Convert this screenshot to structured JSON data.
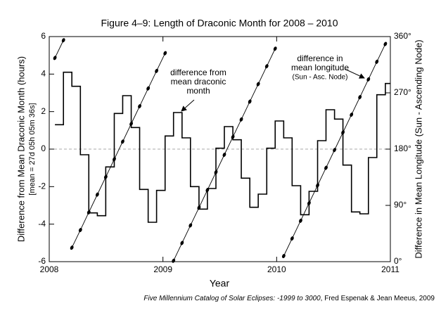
{
  "chart_data": {
    "type": "step",
    "title": "Figure 4–9: Length of Draconic Month for 2008 – 2010",
    "x_label": "Year",
    "y_label": "Difference from Mean Draconic Month (hours)",
    "y_sublabel": "[mean = 27d 05h 05m 36s]",
    "y2_label": "Difference in Mean Longitude (Sun - Ascending Node)",
    "xlim": [
      2008,
      2011
    ],
    "xticks": [
      2008,
      2009,
      2010,
      2011
    ],
    "ylim": [
      -6,
      6
    ],
    "yticks": [
      -6,
      -4,
      -2,
      0,
      2,
      4,
      6
    ],
    "y2lim": [
      0,
      360
    ],
    "y2ticks": [
      {
        "value": 0,
        "label": "0°"
      },
      {
        "value": 90,
        "label": "90°"
      },
      {
        "value": 180,
        "label": "180°"
      },
      {
        "value": 270,
        "label": "270°"
      },
      {
        "value": 360,
        "label": "360°"
      }
    ],
    "reference_line": 0,
    "x": [
      2008.05,
      2008.125,
      2008.199,
      2008.274,
      2008.348,
      2008.423,
      2008.497,
      2008.572,
      2008.646,
      2008.721,
      2008.795,
      2008.87,
      2008.944,
      2009.019,
      2009.093,
      2009.168,
      2009.242,
      2009.317,
      2009.391,
      2009.466,
      2009.54,
      2009.615,
      2009.689,
      2009.764,
      2009.838,
      2009.913,
      2009.987,
      2010.062,
      2010.136,
      2010.211,
      2010.285,
      2010.36,
      2010.434,
      2010.509,
      2010.583,
      2010.658,
      2010.732,
      2010.807,
      2010.881,
      2010.956
    ],
    "series": [
      {
        "color": "#000000",
        "values": [
          1.3,
          4.1,
          3.35,
          -0.3,
          -3.4,
          -3.55,
          -0.95,
          1.9,
          2.85,
          1.15,
          -2.15,
          -3.9,
          -2.2,
          0.7,
          1.95,
          0.6,
          -2.0,
          -3.2,
          -2.1,
          0.05,
          1.2,
          0.5,
          -1.55,
          -3.1,
          -2.4,
          0.05,
          1.5,
          0.6,
          -1.95,
          -3.5,
          -2.25,
          0.45,
          2.1,
          1.6,
          -0.85,
          -3.35,
          -3.45,
          -0.45,
          2.9,
          3.5
        ]
      },
      {
        "color": "#000000",
        "axis": "y2",
        "values": [
          325.9,
          354.1,
          22.4,
          50.6,
          78.9,
          107.3,
          135.4,
          163.9,
          192.0,
          220.5,
          248.6,
          277.1,
          305.1,
          333.4,
          1.5,
          29.9,
          58.0,
          86.4,
          114.5,
          143.0,
          171.0,
          199.5,
          227.5,
          256.0,
          284.0,
          312.5,
          340.6,
          9.0,
          37.1,
          65.5,
          93.6,
          122.0,
          150.1,
          178.6,
          206.6,
          235.1,
          263.1,
          291.6,
          319.7,
          348.1
        ]
      }
    ],
    "annotations": [
      {
        "text": [
          "difference from",
          "mean draconic",
          "month"
        ]
      },
      {
        "text": [
          "difference in",
          "mean longitude",
          "(Sun - Asc. Node)"
        ]
      }
    ],
    "footer_source": "Five Millennium Catalog of Solar Eclipses: -1999 to 3000",
    "footer_authors": ", Fred Espenak & Jean Meeus, 2009"
  }
}
